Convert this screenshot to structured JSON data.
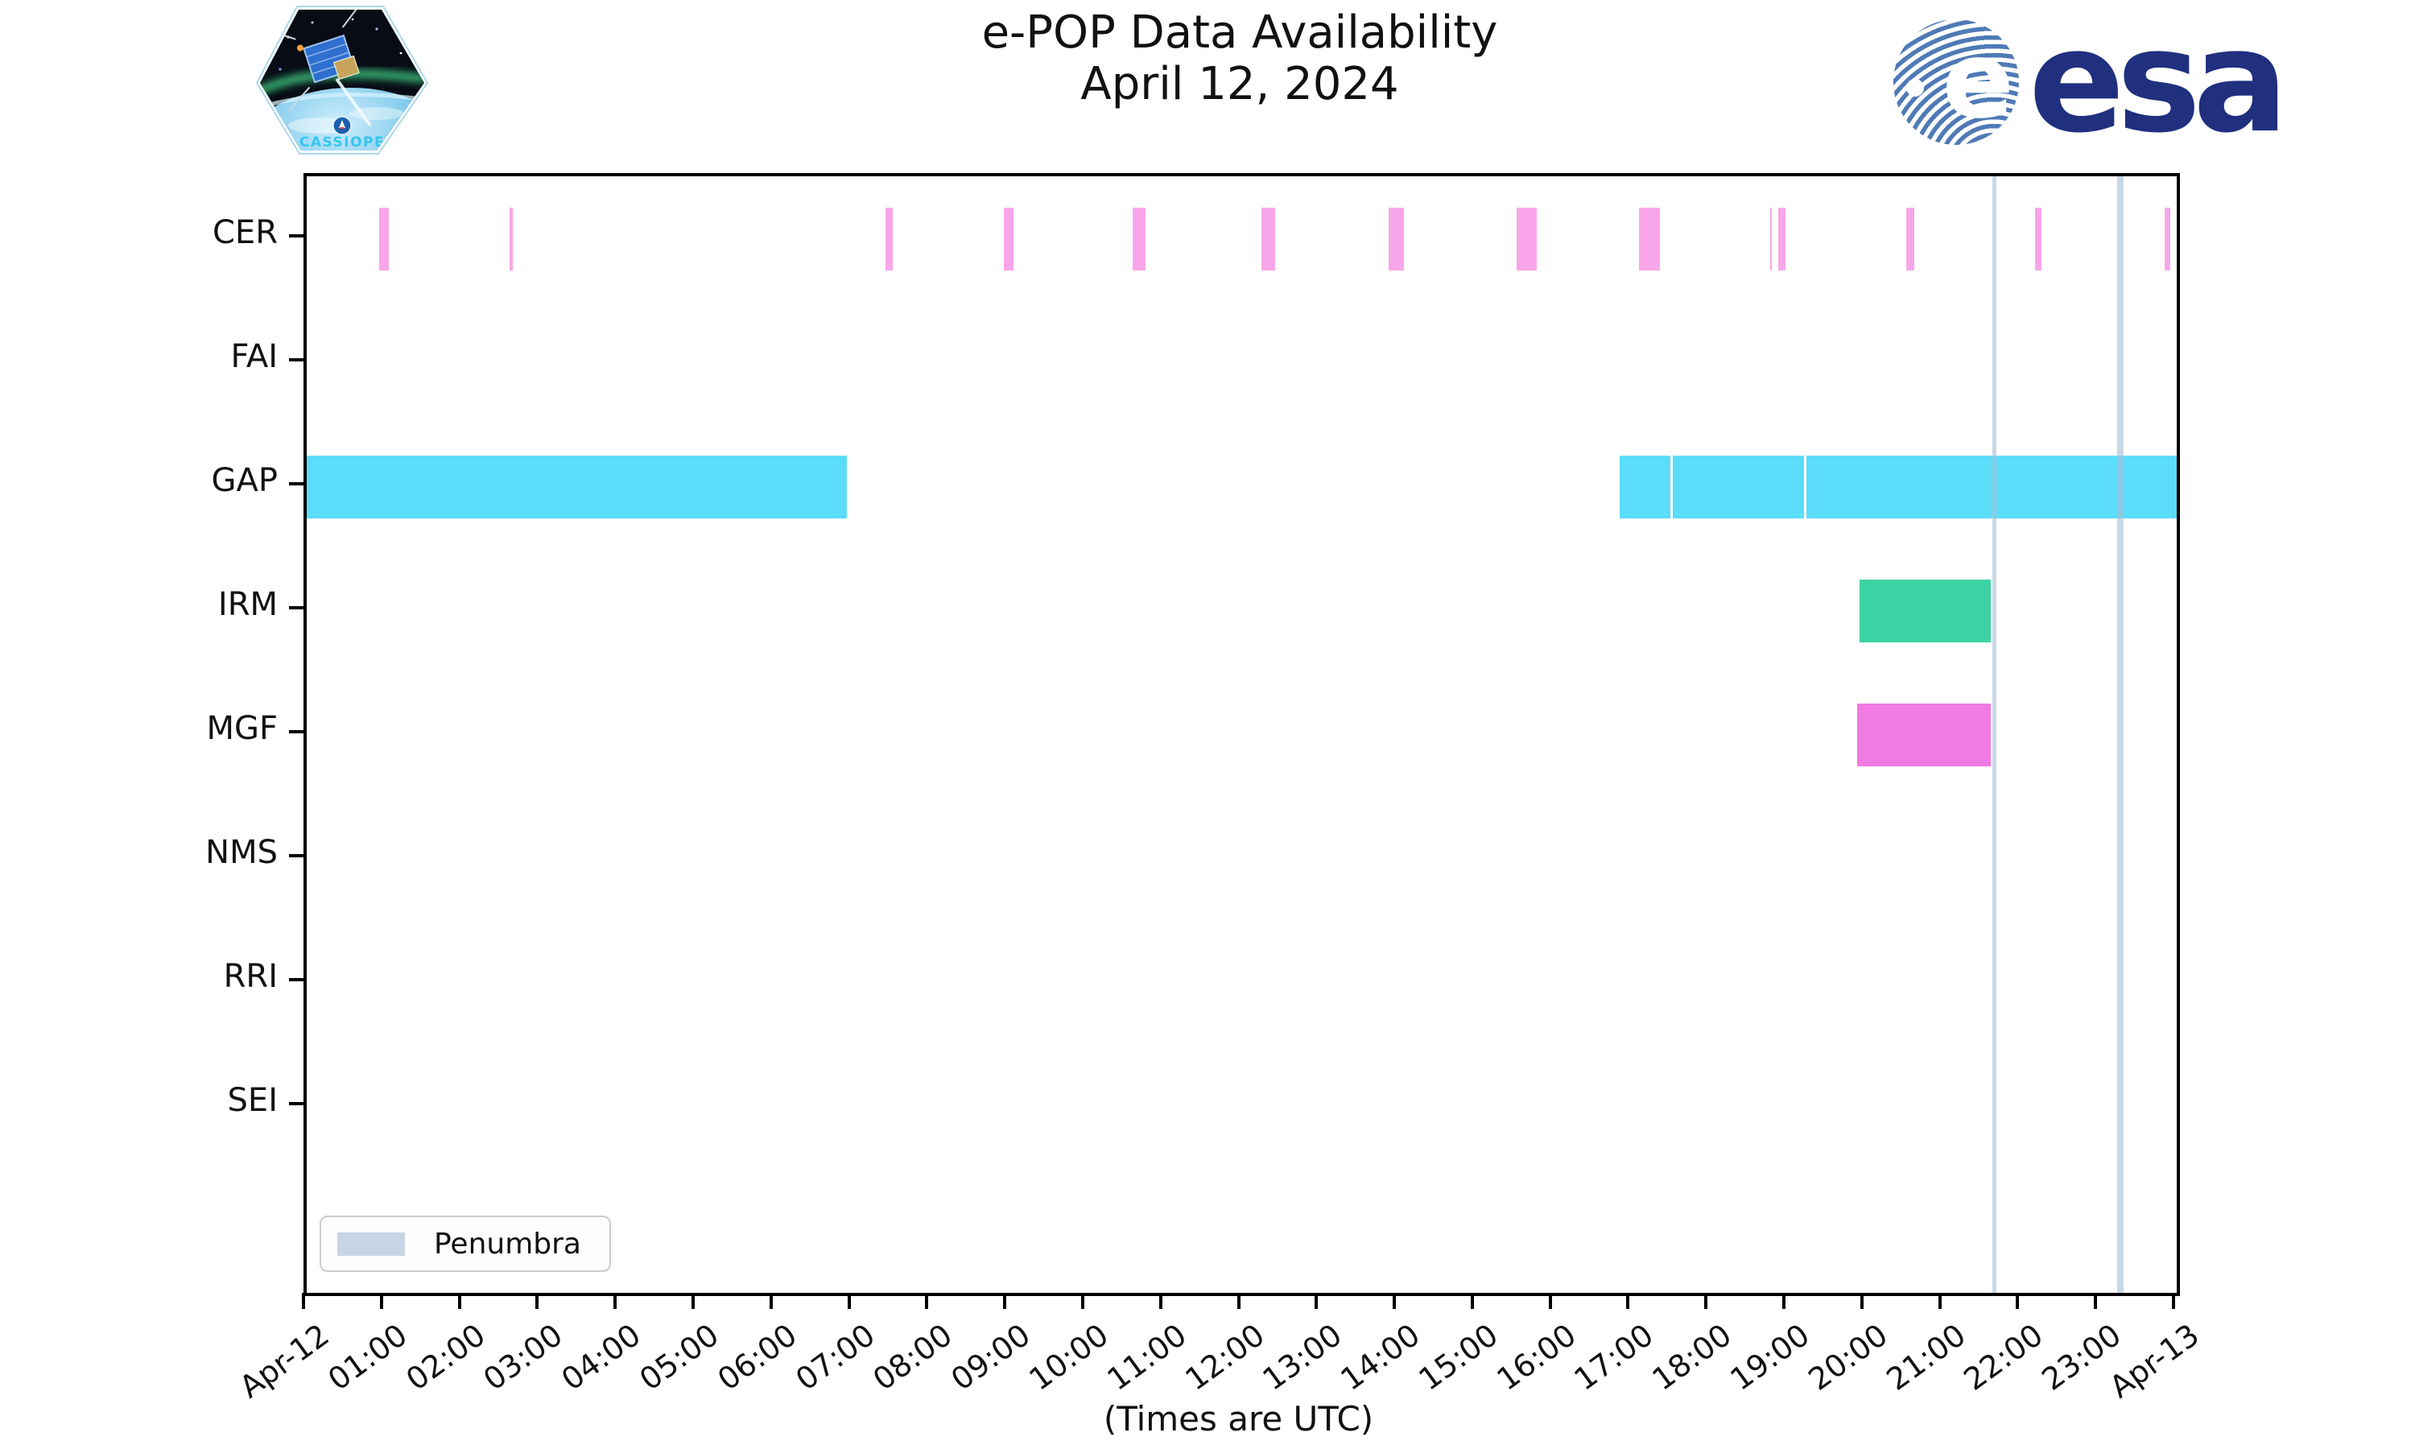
{
  "header": {
    "title": "e-POP Data Availability",
    "subtitle": "April 12, 2024",
    "patch_label": "CASSIOPE",
    "esa_wordmark": "esa",
    "esa_e": "e"
  },
  "axis": {
    "x_tick_labels": [
      "Apr-12",
      "01:00",
      "02:00",
      "03:00",
      "04:00",
      "05:00",
      "06:00",
      "07:00",
      "08:00",
      "09:00",
      "10:00",
      "11:00",
      "12:00",
      "13:00",
      "14:00",
      "15:00",
      "16:00",
      "17:00",
      "18:00",
      "19:00",
      "20:00",
      "21:00",
      "22:00",
      "23:00",
      "Apr-13"
    ],
    "x_note": "(Times are UTC)",
    "hours_span": 24
  },
  "legend": {
    "label": "Penumbra",
    "swatch_color": "#C8D4E5"
  },
  "colors": {
    "cer": "#F8A6E9",
    "gap": "#5BDCF8",
    "irm": "#3CD3A4",
    "mgf": "#F07BE3",
    "penumbra": "#C9D6E7",
    "esa_navy": "#20307F",
    "esa_stripe_blue": "#4F7AB6",
    "patch_text_cyan": "#35C6F0"
  },
  "chart_data": {
    "type": "bar",
    "subtype": "gantt-timeline",
    "title": "e-POP Data Availability",
    "subtitle": "April 12, 2024",
    "xlabel": "(Times are UTC)",
    "x_range_hours": [
      0,
      24
    ],
    "x_start_label": "Apr-12",
    "x_end_label": "Apr-13",
    "grid": false,
    "legend_position": "lower left",
    "categories": [
      "CER",
      "FAI",
      "GAP",
      "IRM",
      "MGF",
      "NMS",
      "RRI",
      "SEI"
    ],
    "series": [
      {
        "name": "CER",
        "color": "#F8A6E9",
        "intervals": [
          [
            "00:56",
            "01:03"
          ],
          [
            "02:36",
            "02:39"
          ],
          [
            "07:26",
            "07:31"
          ],
          [
            "08:57",
            "09:04"
          ],
          [
            "10:36",
            "10:46"
          ],
          [
            "12:15",
            "12:26"
          ],
          [
            "13:53",
            "14:05"
          ],
          [
            "15:32",
            "15:47"
          ],
          [
            "17:06",
            "17:22"
          ],
          [
            "18:47",
            "18:48"
          ],
          [
            "18:53",
            "18:59"
          ],
          [
            "20:32",
            "20:38"
          ],
          [
            "22:11",
            "22:16"
          ],
          [
            "23:51",
            "23:55"
          ]
        ]
      },
      {
        "name": "FAI",
        "color": "#F8A6E9",
        "intervals": []
      },
      {
        "name": "GAP",
        "color": "#5BDCF8",
        "intervals": [
          [
            "00:00",
            "06:56"
          ],
          [
            "16:51",
            "17:30"
          ],
          [
            "17:32",
            "19:13"
          ],
          [
            "19:15",
            "24:00"
          ]
        ]
      },
      {
        "name": "IRM",
        "color": "#3CD3A4",
        "intervals": [
          [
            "19:56",
            "21:37"
          ]
        ]
      },
      {
        "name": "MGF",
        "color": "#F07BE3",
        "intervals": [
          [
            "19:54",
            "21:37"
          ]
        ]
      },
      {
        "name": "NMS",
        "color": "#5BDCF8",
        "intervals": []
      },
      {
        "name": "RRI",
        "color": "#5BDCF8",
        "intervals": []
      },
      {
        "name": "SEI",
        "color": "#5BDCF8",
        "intervals": []
      }
    ],
    "penumbra_intervals": [
      [
        "21:38",
        "21:41"
      ],
      [
        "23:14",
        "23:19"
      ]
    ]
  }
}
